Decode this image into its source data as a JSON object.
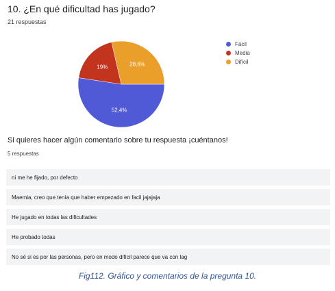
{
  "question": {
    "title": "10. ¿En qué dificultad has jugado?",
    "responses_count": "21 respuestas"
  },
  "chart_data": {
    "type": "pie",
    "categories": [
      "Fácil",
      "Media",
      "Difícil"
    ],
    "values": [
      52.4,
      19,
      28.6
    ],
    "value_labels": [
      "52,4%",
      "19%",
      "28,6%"
    ],
    "colors": [
      "#5059d6",
      "#c2341e",
      "#eb9f2b"
    ],
    "legend_position": "right"
  },
  "comments": {
    "title": "Si quieres hacer algún comentario sobre tu respuesta ¡cuéntanos!",
    "responses_count": "5 respuestas",
    "items": [
      "ni me he fijado, por defecto",
      "Maemia, creo que tenía que haber empezado en facil jajajaja",
      "He jugado en todas las dificultades",
      "He probado todas",
      "No sé si es por las personas, pero en modo difícil parece que va con lag"
    ]
  },
  "caption": "Fig112. Gráfico y comentarios de la pregunta 10."
}
